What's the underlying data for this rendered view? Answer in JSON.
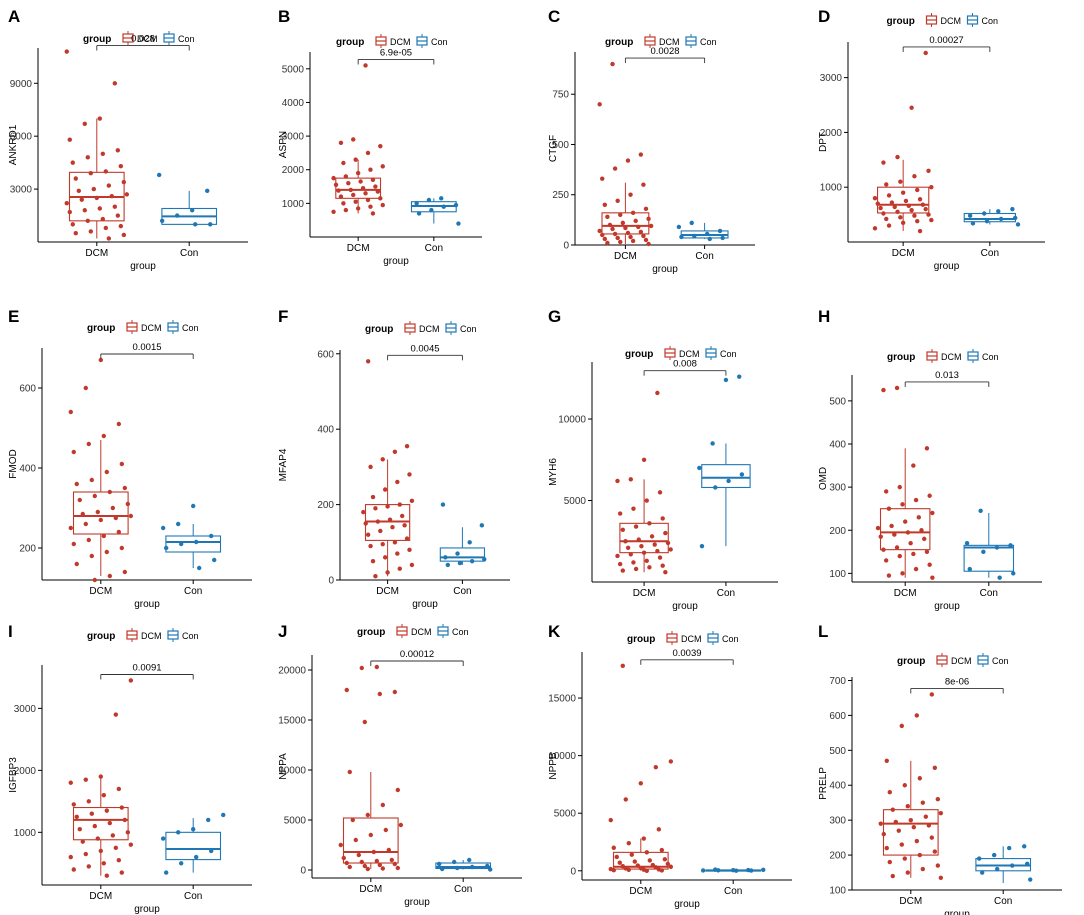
{
  "colors": {
    "dcm": "#C0392B",
    "con": "#1F77B4",
    "axis": "#000000",
    "bracket": "#333333"
  },
  "legend": {
    "title": "group",
    "items": [
      "DCM",
      "Con"
    ]
  },
  "chart_data": [
    {
      "letter": "A",
      "type": "box",
      "gene": "ANKRD1",
      "xlabel": "group",
      "categories": [
        "DCM",
        "Con"
      ],
      "ylim": [
        0,
        11000
      ],
      "yticks": [
        3000,
        6000,
        9000
      ],
      "pvalue": "0.028",
      "boxes": {
        "DCM": {
          "min": 200,
          "q1": 1200,
          "median": 2550,
          "q3": 3950,
          "max": 7000
        },
        "Con": {
          "min": 1000,
          "q1": 1000,
          "median": 1450,
          "q3": 1900,
          "max": 2900
        }
      },
      "points": {
        "DCM": [
          10800,
          9000,
          7000,
          6700,
          5800,
          5200,
          5000,
          4800,
          4500,
          4300,
          4000,
          3900,
          3600,
          3400,
          3200,
          3000,
          2900,
          2700,
          2600,
          2500,
          2400,
          2200,
          2000,
          1900,
          1800,
          1700,
          1500,
          1300,
          1200,
          1000,
          900,
          800,
          600,
          500,
          400,
          200
        ],
        "Con": [
          3800,
          2900,
          1800,
          1500,
          1200,
          1000,
          1000
        ]
      }
    },
    {
      "letter": "B",
      "type": "box",
      "gene": "ASPN",
      "xlabel": "group",
      "categories": [
        "DCM",
        "Con"
      ],
      "ylim": [
        0,
        5500
      ],
      "yticks": [
        1000,
        2000,
        3000,
        4000,
        5000
      ],
      "pvalue": "6.9e-05",
      "boxes": {
        "DCM": {
          "min": 700,
          "q1": 1150,
          "median": 1400,
          "q3": 1750,
          "max": 2300
        },
        "Con": {
          "min": 400,
          "q1": 750,
          "median": 920,
          "q3": 1050,
          "max": 1150
        }
      },
      "points": {
        "DCM": [
          5100,
          2900,
          2800,
          2700,
          2500,
          2300,
          2200,
          2100,
          2000,
          1900,
          1800,
          1750,
          1700,
          1650,
          1600,
          1550,
          1500,
          1450,
          1400,
          1380,
          1350,
          1300,
          1250,
          1200,
          1150,
          1100,
          1050,
          1000,
          950,
          900,
          850,
          800,
          750,
          700
        ],
        "Con": [
          1150,
          1100,
          1000,
          950,
          900,
          800,
          700,
          400
        ]
      }
    },
    {
      "letter": "C",
      "type": "box",
      "gene": "CTGF",
      "xlabel": "group",
      "categories": [
        "DCM",
        "Con"
      ],
      "ylim": [
        0,
        960
      ],
      "yticks": [
        0,
        250,
        500,
        750
      ],
      "pvalue": "0.0028",
      "boxes": {
        "DCM": {
          "min": 5,
          "q1": 55,
          "median": 95,
          "q3": 160,
          "max": 310
        },
        "Con": {
          "min": 30,
          "q1": 35,
          "median": 50,
          "q3": 70,
          "max": 110
        }
      },
      "points": {
        "DCM": [
          900,
          700,
          450,
          420,
          380,
          330,
          300,
          250,
          220,
          200,
          180,
          160,
          150,
          140,
          130,
          120,
          110,
          100,
          95,
          90,
          85,
          80,
          70,
          65,
          60,
          55,
          50,
          45,
          40,
          35,
          30,
          25,
          20,
          15,
          10,
          5
        ],
        "Con": [
          110,
          90,
          70,
          55,
          45,
          40,
          35,
          30
        ]
      }
    },
    {
      "letter": "D",
      "type": "box",
      "gene": "DPT",
      "xlabel": "group",
      "categories": [
        "DCM",
        "Con"
      ],
      "ylim": [
        0,
        3650
      ],
      "yticks": [
        1000,
        2000,
        3000
      ],
      "pvalue": "0.00027",
      "boxes": {
        "DCM": {
          "min": 200,
          "q1": 530,
          "median": 680,
          "q3": 1000,
          "max": 1500
        },
        "Con": {
          "min": 320,
          "q1": 370,
          "median": 420,
          "q3": 520,
          "max": 600
        }
      },
      "points": {
        "DCM": [
          3450,
          2450,
          1550,
          1450,
          1300,
          1200,
          1100,
          1050,
          1000,
          950,
          900,
          850,
          800,
          780,
          750,
          720,
          700,
          680,
          660,
          640,
          620,
          600,
          580,
          550,
          520,
          500,
          480,
          450,
          420,
          400,
          380,
          350,
          300,
          250,
          200
        ],
        "Con": [
          600,
          560,
          520,
          480,
          440,
          420,
          380,
          340,
          320
        ]
      }
    },
    {
      "letter": "E",
      "type": "box",
      "gene": "FMOD",
      "xlabel": "group",
      "categories": [
        "DCM",
        "Con"
      ],
      "ylim": [
        120,
        700
      ],
      "yticks": [
        200,
        400,
        600
      ],
      "pvalue": "0.0015",
      "boxes": {
        "DCM": {
          "min": 130,
          "q1": 235,
          "median": 280,
          "q3": 340,
          "max": 470
        },
        "Con": {
          "min": 150,
          "q1": 190,
          "median": 215,
          "q3": 230,
          "max": 260
        }
      },
      "points": {
        "DCM": [
          670,
          600,
          540,
          510,
          480,
          460,
          440,
          410,
          390,
          370,
          360,
          350,
          340,
          330,
          320,
          310,
          300,
          290,
          285,
          280,
          275,
          270,
          260,
          250,
          240,
          230,
          220,
          210,
          200,
          190,
          180,
          160,
          140,
          130,
          120
        ],
        "Con": [
          305,
          260,
          250,
          230,
          215,
          210,
          200,
          170,
          150
        ]
      }
    },
    {
      "letter": "F",
      "type": "box",
      "gene": "MFAP4",
      "xlabel": "group",
      "categories": [
        "DCM",
        "Con"
      ],
      "ylim": [
        0,
        610
      ],
      "yticks": [
        0,
        200,
        400,
        600
      ],
      "pvalue": "0.0045",
      "boxes": {
        "DCM": {
          "min": 10,
          "q1": 105,
          "median": 155,
          "q3": 200,
          "max": 320
        },
        "Con": {
          "min": 40,
          "q1": 50,
          "median": 60,
          "q3": 85,
          "max": 140
        }
      },
      "points": {
        "DCM": [
          580,
          355,
          340,
          320,
          300,
          280,
          260,
          240,
          220,
          210,
          200,
          195,
          190,
          180,
          170,
          160,
          155,
          150,
          145,
          140,
          130,
          120,
          110,
          100,
          95,
          90,
          80,
          70,
          60,
          50,
          40,
          30,
          20,
          10
        ],
        "Con": [
          200,
          145,
          100,
          70,
          60,
          55,
          50,
          45,
          40
        ]
      }
    },
    {
      "letter": "G",
      "type": "box",
      "gene": "MYH6",
      "xlabel": "group",
      "categories": [
        "DCM",
        "Con"
      ],
      "ylim": [
        0,
        13500
      ],
      "yticks": [
        5000,
        10000
      ],
      "pvalue": "0.008",
      "boxes": {
        "DCM": {
          "min": 600,
          "q1": 1800,
          "median": 2500,
          "q3": 3600,
          "max": 6300
        },
        "Con": {
          "min": 2200,
          "q1": 5800,
          "median": 6400,
          "q3": 7200,
          "max": 8500
        }
      },
      "points": {
        "DCM": [
          11600,
          7500,
          6300,
          6200,
          5500,
          5000,
          4500,
          4200,
          3900,
          3600,
          3400,
          3200,
          3000,
          2800,
          2600,
          2500,
          2400,
          2300,
          2200,
          2100,
          2000,
          1900,
          1800,
          1700,
          1600,
          1500,
          1300,
          1200,
          1100,
          1000,
          900,
          800,
          700,
          600
        ],
        "Con": [
          12600,
          12400,
          8500,
          7000,
          6600,
          6200,
          5800,
          2200
        ]
      }
    },
    {
      "letter": "H",
      "type": "box",
      "gene": "OMD",
      "xlabel": "group",
      "categories": [
        "DCM",
        "Con"
      ],
      "ylim": [
        80,
        560
      ],
      "yticks": [
        100,
        200,
        300,
        400,
        500
      ],
      "pvalue": "0.013",
      "boxes": {
        "DCM": {
          "min": 90,
          "q1": 155,
          "median": 195,
          "q3": 250,
          "max": 390
        },
        "Con": {
          "min": 90,
          "q1": 105,
          "median": 160,
          "q3": 165,
          "max": 240
        }
      },
      "points": {
        "DCM": [
          530,
          525,
          390,
          350,
          300,
          290,
          280,
          270,
          260,
          250,
          240,
          230,
          220,
          210,
          205,
          200,
          195,
          190,
          185,
          180,
          170,
          160,
          155,
          150,
          145,
          140,
          130,
          120,
          110,
          100,
          95,
          90
        ],
        "Con": [
          245,
          170,
          165,
          160,
          150,
          110,
          100,
          90
        ]
      }
    },
    {
      "letter": "I",
      "type": "box",
      "gene": "IGFBP3",
      "xlabel": "group",
      "categories": [
        "DCM",
        "Con"
      ],
      "ylim": [
        150,
        3700
      ],
      "yticks": [
        1000,
        2000,
        3000
      ],
      "pvalue": "0.0091",
      "boxes": {
        "DCM": {
          "min": 300,
          "q1": 880,
          "median": 1200,
          "q3": 1400,
          "max": 1900
        },
        "Con": {
          "min": 350,
          "q1": 560,
          "median": 730,
          "q3": 1000,
          "max": 1230
        }
      },
      "points": {
        "DCM": [
          3450,
          2900,
          1900,
          1850,
          1800,
          1700,
          1600,
          1500,
          1450,
          1400,
          1350,
          1300,
          1250,
          1200,
          1150,
          1100,
          1050,
          1000,
          950,
          900,
          850,
          800,
          750,
          700,
          650,
          600,
          550,
          500,
          450,
          400,
          350,
          300
        ],
        "Con": [
          1280,
          1200,
          1050,
          1000,
          900,
          700,
          600,
          500,
          350
        ]
      }
    },
    {
      "letter": "J",
      "type": "box",
      "gene": "NPPA",
      "xlabel": "group",
      "categories": [
        "DCM",
        "Con"
      ],
      "ylim": [
        -800,
        21500
      ],
      "yticks": [
        0,
        5000,
        10000,
        15000,
        20000
      ],
      "pvalue": "0.00012",
      "boxes": {
        "DCM": {
          "min": 100,
          "q1": 700,
          "median": 1800,
          "q3": 5200,
          "max": 9800
        },
        "Con": {
          "min": 50,
          "q1": 150,
          "median": 300,
          "q3": 700,
          "max": 1000
        }
      },
      "points": {
        "DCM": [
          20300,
          20200,
          18000,
          17800,
          17600,
          14800,
          9800,
          8000,
          6500,
          5500,
          5000,
          4500,
          4000,
          3500,
          3000,
          2500,
          2000,
          1800,
          1500,
          1200,
          1000,
          900,
          800,
          700,
          600,
          500,
          400,
          300,
          200,
          150,
          100
        ],
        "Con": [
          1000,
          800,
          600,
          400,
          300,
          200,
          100,
          50
        ]
      }
    },
    {
      "letter": "K",
      "type": "box",
      "gene": "NPPB",
      "xlabel": "group",
      "categories": [
        "DCM",
        "Con"
      ],
      "ylim": [
        -800,
        19000
      ],
      "yticks": [
        0,
        5000,
        10000,
        15000
      ],
      "pvalue": "0.0039",
      "boxes": {
        "DCM": {
          "min": 0,
          "q1": 150,
          "median": 350,
          "q3": 1600,
          "max": 2800
        },
        "Con": {
          "min": 0,
          "q1": 20,
          "median": 40,
          "q3": 60,
          "max": 100
        }
      },
      "points": {
        "DCM": [
          17800,
          9500,
          9000,
          7600,
          6200,
          4400,
          3600,
          2800,
          2400,
          2000,
          1800,
          1600,
          1400,
          1200,
          1000,
          900,
          800,
          700,
          600,
          500,
          450,
          400,
          350,
          300,
          250,
          200,
          150,
          120,
          100,
          80,
          50,
          30,
          0
        ],
        "Con": [
          100,
          80,
          60,
          50,
          40,
          30,
          20,
          10
        ]
      }
    },
    {
      "letter": "L",
      "type": "box",
      "gene": "PRELP",
      "xlabel": "group",
      "categories": [
        "DCM",
        "Con"
      ],
      "ylim": [
        100,
        710
      ],
      "yticks": [
        100,
        200,
        300,
        400,
        500,
        600,
        700
      ],
      "pvalue": "8e-06",
      "boxes": {
        "DCM": {
          "min": 135,
          "q1": 200,
          "median": 290,
          "q3": 330,
          "max": 470
        },
        "Con": {
          "min": 120,
          "q1": 155,
          "median": 170,
          "q3": 190,
          "max": 225
        }
      },
      "points": {
        "DCM": [
          660,
          600,
          570,
          470,
          450,
          420,
          400,
          380,
          360,
          350,
          340,
          330,
          320,
          310,
          300,
          295,
          290,
          285,
          280,
          270,
          260,
          250,
          240,
          230,
          220,
          210,
          200,
          190,
          180,
          170,
          160,
          150,
          140,
          135
        ],
        "Con": [
          225,
          220,
          200,
          190,
          175,
          170,
          160,
          150,
          130
        ]
      }
    }
  ]
}
